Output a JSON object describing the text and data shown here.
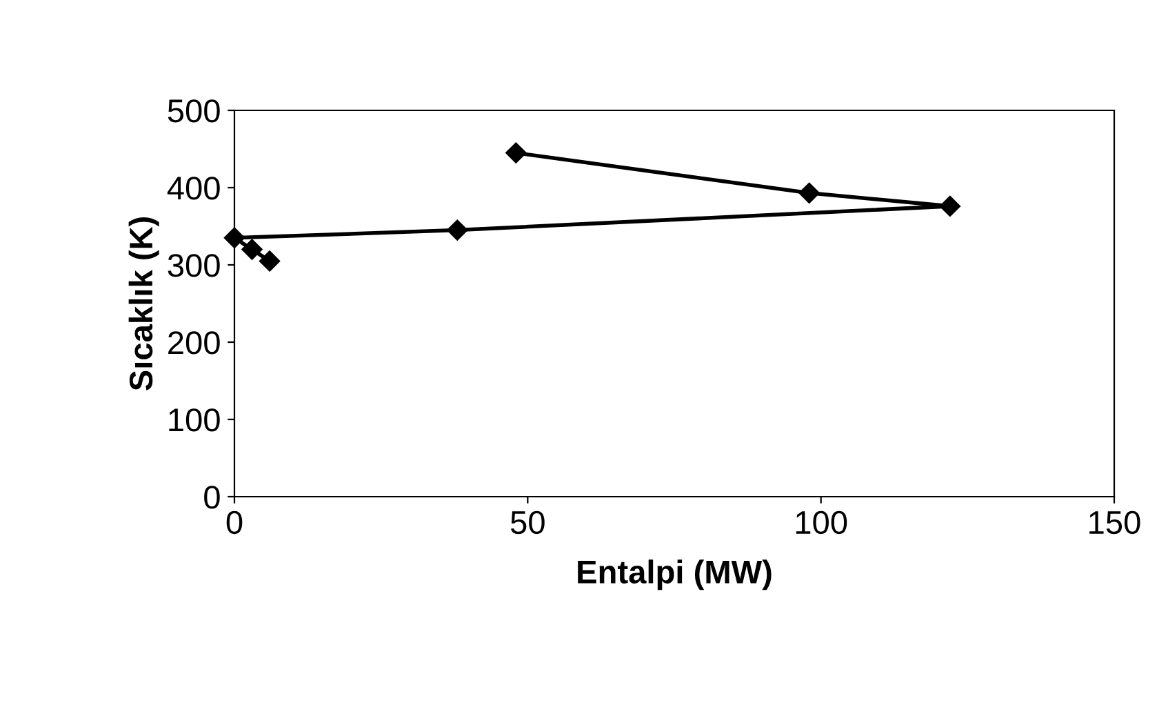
{
  "chart_data": {
    "type": "line",
    "xlabel": "Entalpi (MW)",
    "ylabel": "Sıcaklık (K)",
    "series": [
      {
        "color": "#000000",
        "x": [
          48,
          98,
          122,
          38,
          0,
          3,
          6
        ],
        "values": [
          445,
          393,
          376,
          345,
          335,
          320,
          305
        ]
      }
    ],
    "xlim": [
      0,
      150
    ],
    "xticks": [
      0,
      50,
      100,
      150
    ],
    "ylim": [
      0,
      500
    ],
    "yticks": [
      0,
      100,
      200,
      300,
      400,
      500
    ],
    "marker": "diamond",
    "line_style": "solid",
    "grid": false,
    "legend": false
  }
}
